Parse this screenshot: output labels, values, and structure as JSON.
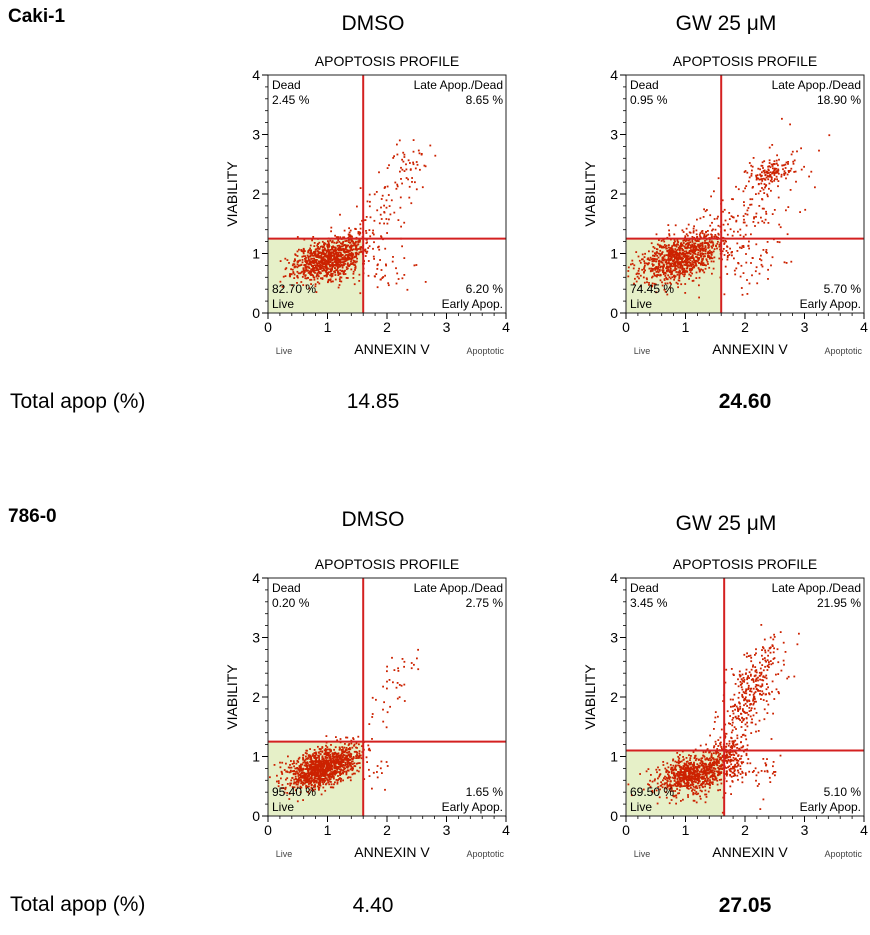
{
  "panels": [
    {
      "cell_line": "Caki-1",
      "total_label": "Total apop (%)",
      "conditions": [
        {
          "label": "DMSO",
          "total": "14.85",
          "total_bold": false,
          "chart": {
            "title": "APOPTOSIS PROFILE",
            "ylabel": "VIABILITY",
            "xlabel": "ANNEXIN V",
            "x_left_label": "Live",
            "x_right_label": "Apoptotic",
            "xlim": [
              0,
              4
            ],
            "ylim": [
              0,
              4
            ],
            "x_ticks": [
              "0",
              "1",
              "2",
              "3",
              "4"
            ],
            "y_ticks": [
              "0",
              "1",
              "2",
              "3",
              "4"
            ],
            "gate_x": 1.6,
            "gate_y": 1.25,
            "quadrants": {
              "dead": {
                "name": "Dead",
                "pct": "2.45 %"
              },
              "late": {
                "name": "Late Apop./Dead",
                "pct": "8.65 %"
              },
              "live": {
                "name": "Live",
                "pct": "82.70 %"
              },
              "early": {
                "name": "Early Apop.",
                "pct": "6.20 %"
              }
            }
          }
        },
        {
          "label": "GW 25 μM",
          "total": "24.60",
          "total_bold": true,
          "chart": {
            "title": "APOPTOSIS PROFILE",
            "ylabel": "VIABILITY",
            "xlabel": "ANNEXIN V",
            "x_left_label": "Live",
            "x_right_label": "Apoptotic",
            "xlim": [
              0,
              4
            ],
            "ylim": [
              0,
              4
            ],
            "x_ticks": [
              "0",
              "1",
              "2",
              "3",
              "4"
            ],
            "y_ticks": [
              "0",
              "1",
              "2",
              "3",
              "4"
            ],
            "gate_x": 1.6,
            "gate_y": 1.25,
            "quadrants": {
              "dead": {
                "name": "Dead",
                "pct": "0.95 %"
              },
              "late": {
                "name": "Late Apop./Dead",
                "pct": "18.90 %"
              },
              "live": {
                "name": "Live",
                "pct": "74.45 %"
              },
              "early": {
                "name": "Early Apop.",
                "pct": "5.70 %"
              }
            }
          }
        }
      ]
    },
    {
      "cell_line": "786-0",
      "total_label": "Total apop (%)",
      "conditions": [
        {
          "label": "DMSO",
          "total": "4.40",
          "total_bold": false,
          "chart": {
            "title": "APOPTOSIS PROFILE",
            "ylabel": "VIABILITY",
            "xlabel": "ANNEXIN V",
            "x_left_label": "Live",
            "x_right_label": "Apoptotic",
            "xlim": [
              0,
              4
            ],
            "ylim": [
              0,
              4
            ],
            "x_ticks": [
              "0",
              "1",
              "2",
              "3",
              "4"
            ],
            "y_ticks": [
              "0",
              "1",
              "2",
              "3",
              "4"
            ],
            "gate_x": 1.6,
            "gate_y": 1.25,
            "quadrants": {
              "dead": {
                "name": "Dead",
                "pct": "0.20 %"
              },
              "late": {
                "name": "Late Apop./Dead",
                "pct": "2.75 %"
              },
              "live": {
                "name": "Live",
                "pct": "95.40 %"
              },
              "early": {
                "name": "Early Apop.",
                "pct": "1.65 %"
              }
            }
          }
        },
        {
          "label": "GW 25 μM",
          "total": "27.05",
          "total_bold": true,
          "chart": {
            "title": "APOPTOSIS PROFILE",
            "ylabel": "VIABILITY",
            "xlabel": "ANNEXIN V",
            "x_left_label": "Live",
            "x_right_label": "Apoptotic",
            "xlim": [
              0,
              4
            ],
            "ylim": [
              0,
              4
            ],
            "x_ticks": [
              "0",
              "1",
              "2",
              "3",
              "4"
            ],
            "y_ticks": [
              "0",
              "1",
              "2",
              "3",
              "4"
            ],
            "gate_x": 1.65,
            "gate_y": 1.1,
            "quadrants": {
              "dead": {
                "name": "Dead",
                "pct": "3.45 %"
              },
              "late": {
                "name": "Late Apop./Dead",
                "pct": "21.95 %"
              },
              "live": {
                "name": "Live",
                "pct": "69.50 %"
              },
              "early": {
                "name": "Early Apop.",
                "pct": "5.10 %"
              }
            }
          }
        }
      ]
    }
  ],
  "colors": {
    "dot": "#cc2200",
    "gate": "#d42020",
    "live_fill": "#e6f0c8",
    "axis": "#000000"
  },
  "chart_data": [
    {
      "type": "scatter",
      "title": "APOPTOSIS PROFILE",
      "xlabel": "ANNEXIN V",
      "ylabel": "VIABILITY",
      "xlim": [
        0,
        4
      ],
      "ylim": [
        0,
        4
      ],
      "grid": false,
      "quadrant_percent": {
        "Dead": 2.45,
        "Late Apop./Dead": 8.65,
        "Live": 82.7,
        "Early Apop.": 6.2
      },
      "clusters": [
        {
          "name": "Live",
          "center": [
            1.0,
            0.9
          ]
        },
        {
          "name": "Late Apop./Dead",
          "center": [
            2.3,
            2.4
          ]
        }
      ]
    },
    {
      "type": "scatter",
      "title": "APOPTOSIS PROFILE",
      "xlabel": "ANNEXIN V",
      "ylabel": "VIABILITY",
      "xlim": [
        0,
        4
      ],
      "ylim": [
        0,
        4
      ],
      "grid": false,
      "quadrant_percent": {
        "Dead": 0.95,
        "Late Apop./Dead": 18.9,
        "Live": 74.45,
        "Early Apop.": 5.7
      },
      "clusters": [
        {
          "name": "Live",
          "center": [
            0.9,
            0.9
          ]
        },
        {
          "name": "Late Apop./Dead",
          "center": [
            2.4,
            2.35
          ]
        }
      ]
    },
    {
      "type": "scatter",
      "title": "APOPTOSIS PROFILE",
      "xlabel": "ANNEXIN V",
      "ylabel": "VIABILITY",
      "xlim": [
        0,
        4
      ],
      "ylim": [
        0,
        4
      ],
      "grid": false,
      "quadrant_percent": {
        "Dead": 0.2,
        "Late Apop./Dead": 2.75,
        "Live": 95.4,
        "Early Apop.": 1.65
      },
      "clusters": [
        {
          "name": "Live",
          "center": [
            0.9,
            0.8
          ]
        },
        {
          "name": "Late Apop./Dead",
          "center": [
            2.2,
            2.4
          ]
        }
      ]
    },
    {
      "type": "scatter",
      "title": "APOPTOSIS PROFILE",
      "xlabel": "ANNEXIN V",
      "ylabel": "VIABILITY",
      "xlim": [
        0,
        4
      ],
      "ylim": [
        0,
        4
      ],
      "grid": false,
      "quadrant_percent": {
        "Dead": 3.45,
        "Late Apop./Dead": 21.95,
        "Live": 69.5,
        "Early Apop.": 5.1
      },
      "clusters": [
        {
          "name": "Live",
          "center": [
            1.2,
            0.75
          ]
        },
        {
          "name": "Late Apop./Dead",
          "center": [
            2.2,
            2.35
          ]
        }
      ]
    }
  ]
}
